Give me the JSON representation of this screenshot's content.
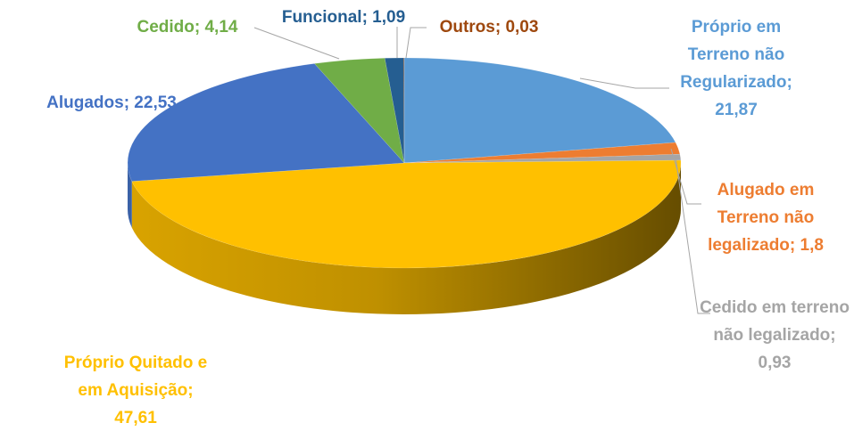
{
  "chart_data": {
    "type": "pie3d",
    "values": [
      21.87,
      1.8,
      0.93,
      47.61,
      22.53,
      4.14,
      1.09,
      0.03
    ],
    "value_labels": [
      "Próprio em Terreno não Regularizado; 21,87",
      "Alugado em Terreno não legalizado; 1,8",
      "Cedido em terreno não legalizado; 0,93",
      "Próprio Quitado e em Aquisição; 47,61",
      "Alugados; 22,53",
      "Cedido; 4,14",
      "Funcional; 1,09",
      "Outros; 0,03"
    ],
    "colors": [
      "#5b9bd5",
      "#ed7d31",
      "#a5a5a5",
      "#ffc000",
      "#4472c4",
      "#70ad47",
      "#255e91",
      "#9e480e"
    ]
  }
}
